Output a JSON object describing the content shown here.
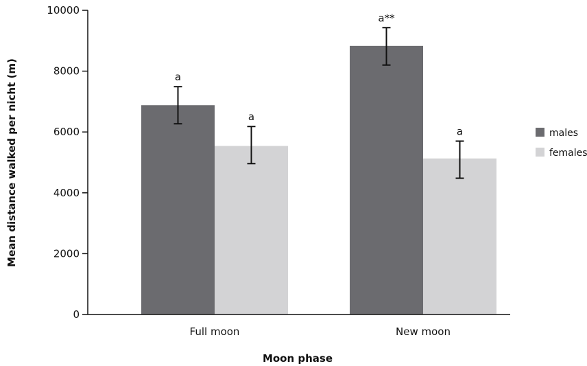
{
  "chart_data": {
    "type": "bar",
    "xlabel": "Moon phase",
    "ylabel": "Mean distance walked per nicht (m)",
    "ylim": [
      0,
      10000
    ],
    "yticks": [
      0,
      2000,
      4000,
      6000,
      8000,
      10000
    ],
    "categories": [
      "Full moon",
      "New moon"
    ],
    "series": [
      {
        "name": "males",
        "color": "#6b6b6f",
        "values": [
          6880,
          8830
        ],
        "error": [
          [
            6270,
            7490
          ],
          [
            8200,
            9430
          ]
        ],
        "labels": [
          "a",
          "a**"
        ]
      },
      {
        "name": "females",
        "color": "#d3d3d5",
        "values": [
          5540,
          5130
        ],
        "error": [
          [
            4960,
            6180
          ],
          [
            4480,
            5700
          ]
        ],
        "labels": [
          "a",
          "a"
        ]
      }
    ],
    "legend_position": "right",
    "grid": false
  }
}
